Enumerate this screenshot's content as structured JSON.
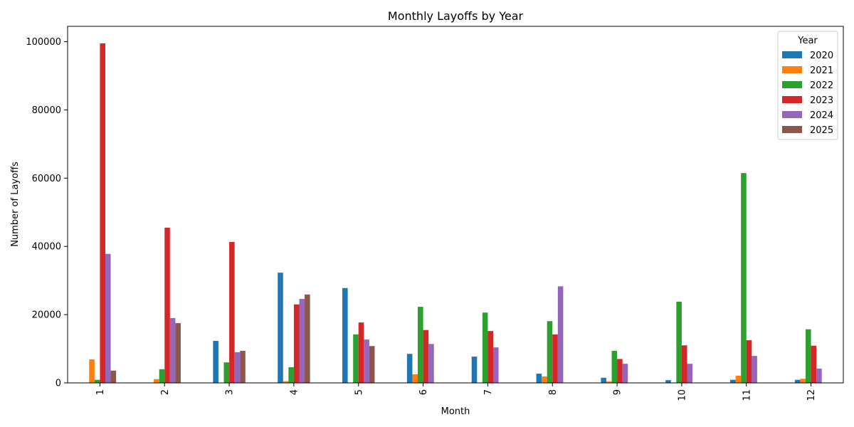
{
  "chart_data": {
    "type": "bar",
    "title": "Monthly Layoffs by Year",
    "xlabel": "Month",
    "ylabel": "Number of Layoffs",
    "categories": [
      "1",
      "2",
      "3",
      "4",
      "5",
      "6",
      "7",
      "8",
      "9",
      "10",
      "11",
      "12"
    ],
    "ylim": [
      0,
      104500
    ],
    "yticks": [
      0,
      20000,
      40000,
      60000,
      80000,
      100000
    ],
    "grid": false,
    "legend": {
      "title": "Year",
      "placement": "top-right"
    },
    "series": [
      {
        "name": "2020",
        "color": "#1f77b4",
        "values": [
          0,
          0,
          12300,
          32300,
          27800,
          8500,
          7700,
          2700,
          1500,
          800,
          900,
          900
        ]
      },
      {
        "name": "2021",
        "color": "#ff7f0e",
        "values": [
          6900,
          1100,
          0,
          500,
          0,
          2500,
          0,
          1900,
          400,
          0,
          2100,
          1200
        ]
      },
      {
        "name": "2022",
        "color": "#2ca02c",
        "values": [
          900,
          4000,
          6000,
          4600,
          14200,
          22300,
          20600,
          18100,
          9400,
          23800,
          61500,
          15700
        ]
      },
      {
        "name": "2023",
        "color": "#d62728",
        "values": [
          99500,
          45500,
          41300,
          23000,
          17700,
          15500,
          15200,
          14200,
          7000,
          11000,
          12500,
          10900
        ]
      },
      {
        "name": "2024",
        "color": "#9467bd",
        "values": [
          37800,
          19000,
          9000,
          24600,
          12700,
          11400,
          10400,
          28300,
          5600,
          5600,
          7900,
          4200
        ]
      },
      {
        "name": "2025",
        "color": "#8c564b",
        "values": [
          3600,
          17500,
          9400,
          25900,
          10800,
          0,
          0,
          0,
          0,
          0,
          0,
          0
        ]
      }
    ]
  }
}
